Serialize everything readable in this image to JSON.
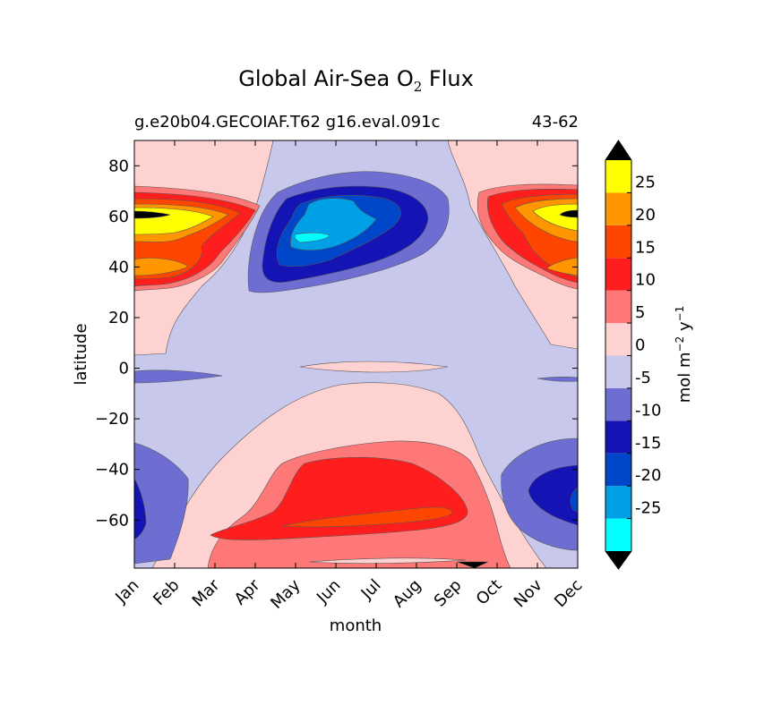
{
  "chart_data": {
    "type": "heatmap",
    "title_main": "Global Air-Sea O",
    "title_sub": "2",
    "title_tail": " Flux",
    "subtitle_left": "g.e20b04.GECOIAF.T62 g16.eval.091c",
    "subtitle_right": "43-62",
    "xlabel": "month",
    "ylabel": "latitude",
    "x_ticks": [
      "Jan",
      "Feb",
      "Mar",
      "Apr",
      "May",
      "Jun",
      "Jul",
      "Aug",
      "Sep",
      "Oct",
      "Nov",
      "Dec"
    ],
    "y_ticks": [
      80,
      60,
      40,
      20,
      0,
      -20,
      -40,
      -60
    ],
    "ylim": [
      -79,
      90
    ],
    "colorbar": {
      "label": "mol m",
      "label_exp1": "−2",
      "label_mid": "  y",
      "label_exp2": "−1",
      "levels": [
        -30,
        -25,
        -20,
        -15,
        -10,
        -5,
        0,
        5,
        10,
        15,
        20,
        25,
        30
      ],
      "tick_labels": [
        "25",
        "20",
        "15",
        "10",
        "5",
        "0",
        "-5",
        "-10",
        "-15",
        "-20",
        "-25"
      ],
      "colors": [
        "#00ffff",
        "#00a0e6",
        "#0046c8",
        "#1414b4",
        "#6e6ed2",
        "#c8c8ec",
        "#ffd2d2",
        "#ff7878",
        "#ff1e1e",
        "#ff4600",
        "#ff9600",
        "#ffff00"
      ],
      "extend_low_color": "#000000",
      "extend_high_color": "#000000"
    },
    "regions": [
      {
        "level": "0 to 5",
        "description": "high latitudes north, winter"
      },
      {
        "level": "20 to 25",
        "description": "north Atlantic Jan/Dec max near 55N"
      },
      {
        "level": "-20 to -25",
        "description": "north summer min near 55N Jun"
      },
      {
        "level": "10 to 15",
        "description": "southern winter max near 50S Jul"
      },
      {
        "level": "-10 to -15",
        "description": "southern summer min near 55S Jan/Dec"
      }
    ]
  }
}
